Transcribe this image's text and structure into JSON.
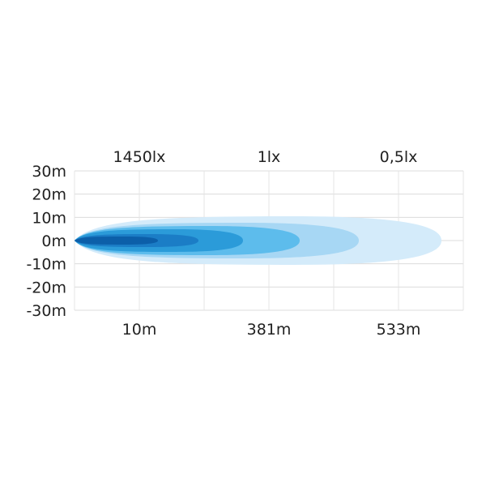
{
  "chart_data": {
    "type": "area",
    "title": "",
    "y_ticks": [
      "30m",
      "20m",
      "10m",
      "0m",
      "-10m",
      "-20m",
      "-30m"
    ],
    "top_labels": [
      "1450lx",
      "1lx",
      "0,5lx"
    ],
    "bottom_labels": [
      "10m",
      "381m",
      "533m"
    ],
    "grid": true,
    "zones": [
      {
        "color": "#d4ebfa"
      },
      {
        "color": "#a7d7f4"
      },
      {
        "color": "#5dbcec"
      },
      {
        "color": "#2b9bd9"
      },
      {
        "color": "#1b7dc6"
      },
      {
        "color": "#0c5fa9"
      }
    ]
  }
}
